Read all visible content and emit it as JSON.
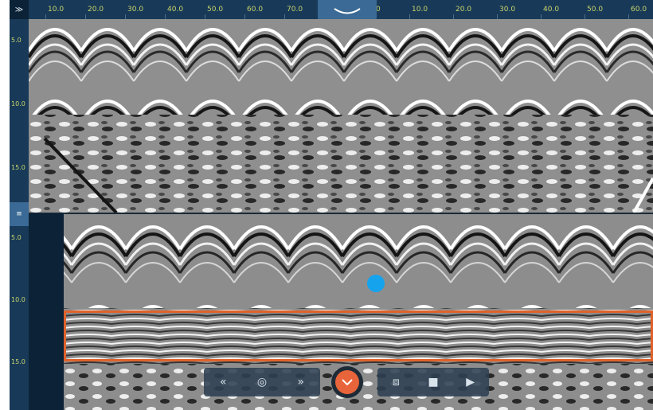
{
  "ruler": {
    "corner_label": "≫",
    "x_ticks": [
      "10.0",
      "20.0",
      "30.0",
      "40.0",
      "50.0",
      "60.0",
      "70.0",
      "",
      "0",
      "10.0",
      "20.0",
      "30.0",
      "40.0",
      "50.0",
      "60.0"
    ],
    "y_ticks_top": [
      "5.0",
      "10.0",
      "15.0"
    ],
    "y_ticks_bottom": [
      "5.0",
      "10.0",
      "15.0"
    ],
    "split_label": "≡"
  },
  "icons": {
    "center_tab": "wave-icon",
    "rewind": "rewind-icon",
    "target": "target-icon",
    "fast_forward": "fast-forward-icon",
    "record": "record-icon",
    "camera": "camera-icon",
    "stop": "stop-icon",
    "play": "play-icon"
  },
  "toolbar": {
    "rewind": "«",
    "target": "◎",
    "fast_forward": "»",
    "camera": "⧈",
    "stop": "■",
    "play": "▶"
  },
  "colors": {
    "frame": "#0f2a3f",
    "ruler": "#183a58",
    "tick_text": "#c9d36a",
    "selection": "#e0622a",
    "marker": "#15a3ee",
    "record": "#e8643a"
  }
}
